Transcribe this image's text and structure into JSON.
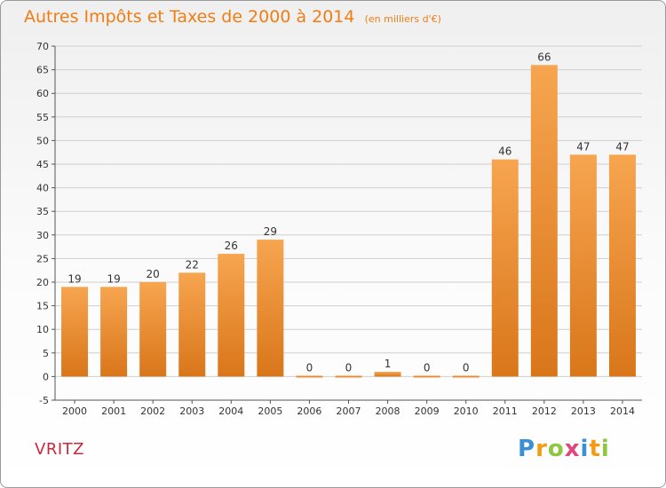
{
  "header": {
    "title": "Autres Impôts et Taxes de 2000 à 2014",
    "subtitle": "(en milliers d'€)"
  },
  "footer": {
    "commune": "VRITZ",
    "brand": [
      "P",
      "r",
      "o",
      "x",
      "i",
      "t",
      "i"
    ]
  },
  "colors": {
    "bar_top": "#f7a550",
    "bar_bottom": "#d9761a",
    "title": "#f07d13",
    "commune": "#c9283e"
  },
  "chart_data": {
    "type": "bar",
    "title": "Autres Impôts et Taxes de 2000 à 2014",
    "subtitle": "(en milliers d'€)",
    "xlabel": "",
    "ylabel": "",
    "categories": [
      "2000",
      "2001",
      "2002",
      "2003",
      "2004",
      "2005",
      "2006",
      "2007",
      "2008",
      "2009",
      "2010",
      "2011",
      "2012",
      "2013",
      "2014"
    ],
    "values": [
      19,
      19,
      20,
      22,
      26,
      29,
      0,
      0,
      1,
      0,
      0,
      46,
      66,
      47,
      47
    ],
    "ylim": [
      -5,
      70
    ],
    "yticks": [
      -5,
      0,
      5,
      10,
      15,
      20,
      25,
      30,
      35,
      40,
      45,
      50,
      55,
      60,
      65,
      70
    ],
    "grid": true,
    "legend": "none"
  }
}
